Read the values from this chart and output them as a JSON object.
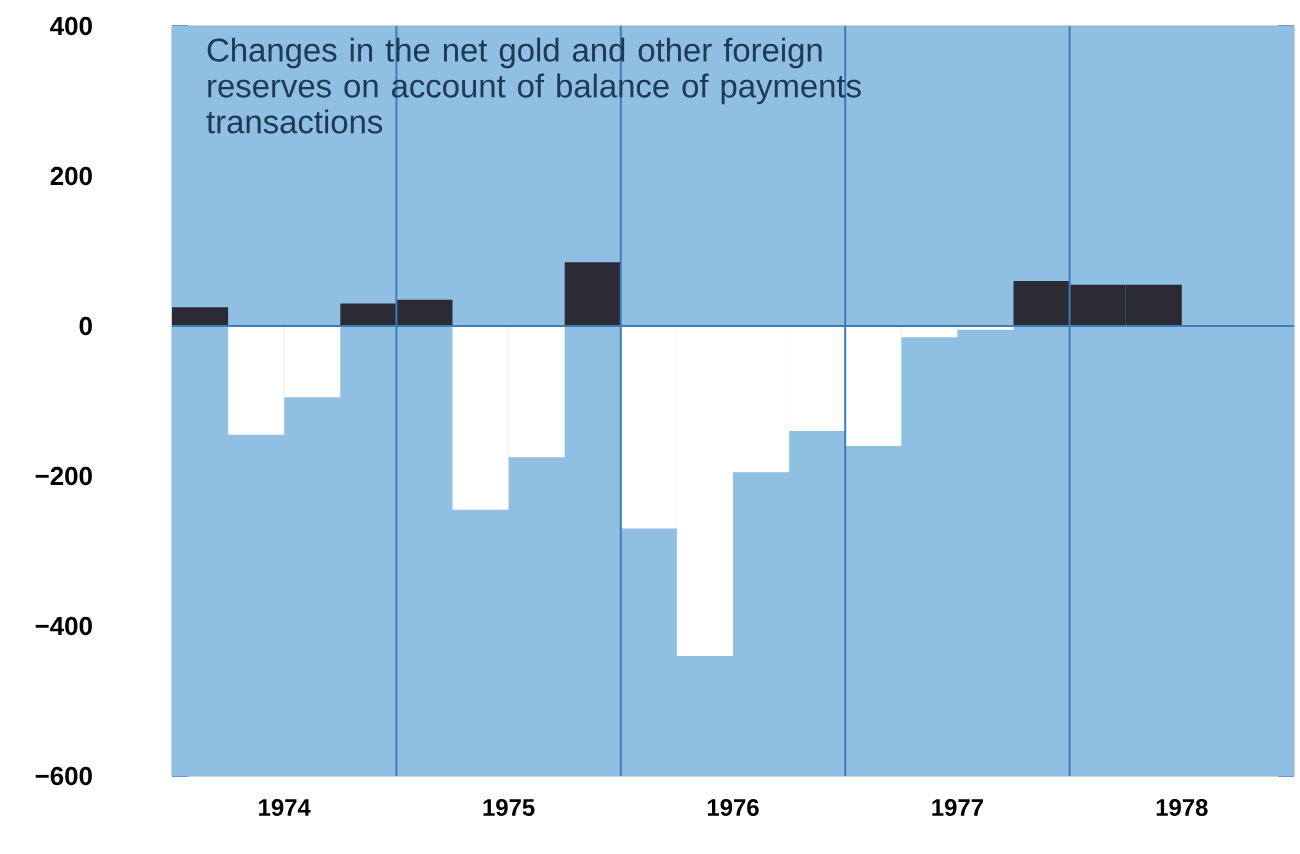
{
  "chart_data": {
    "type": "bar",
    "title": "Changes in the net gold and other foreign reserves on account of balance of payments transactions",
    "x": [
      1974.125,
      1974.375,
      1974.625,
      1974.875,
      1975.125,
      1975.375,
      1975.625,
      1975.875,
      1976.125,
      1976.375,
      1976.625,
      1976.875,
      1977.125,
      1977.375,
      1977.625,
      1977.875,
      1978.125,
      1978.375
    ],
    "values": [
      25,
      -145,
      -95,
      30,
      35,
      -245,
      -175,
      85,
      -270,
      -440,
      -195,
      -140,
      -160,
      -15,
      -5,
      60,
      55,
      55
    ],
    "colors": [
      "#2b2b36",
      "#ffffff",
      "#ffffff",
      "#2b2b36",
      "#2b2b36",
      "#ffffff",
      "#ffffff",
      "#2b2b36",
      "#ffffff",
      "#ffffff",
      "#ffffff",
      "#ffffff",
      "#ffffff",
      "#ffffff",
      "#ffffff",
      "#2b2b36",
      "#2b2b36",
      "#2b2b36"
    ],
    "xlim": [
      1974,
      1979
    ],
    "xticks": [
      {
        "value": 1974.5,
        "label": "1974"
      },
      {
        "value": 1975.5,
        "label": "1975"
      },
      {
        "value": 1976.5,
        "label": "1976"
      },
      {
        "value": 1977.5,
        "label": "1977"
      },
      {
        "value": 1978.5,
        "label": "1978"
      }
    ],
    "ylim": [
      -600,
      400
    ],
    "yticks": [
      {
        "value": -600,
        "label": "−600"
      },
      {
        "value": -400,
        "label": "−400"
      },
      {
        "value": -200,
        "label": "−200"
      },
      0,
      200,
      400
    ],
    "ref_lines": [
      {
        "axis": "y",
        "value": 0,
        "color": "#3f7db4"
      },
      {
        "axis": "x",
        "value": 1975,
        "color": "#3f7db4"
      },
      {
        "axis": "x",
        "value": 1976,
        "color": "#3f7db4"
      },
      {
        "axis": "x",
        "value": 1977,
        "color": "#3f7db4"
      },
      {
        "axis": "x",
        "value": 1978,
        "color": "#3f7db4"
      }
    ]
  }
}
